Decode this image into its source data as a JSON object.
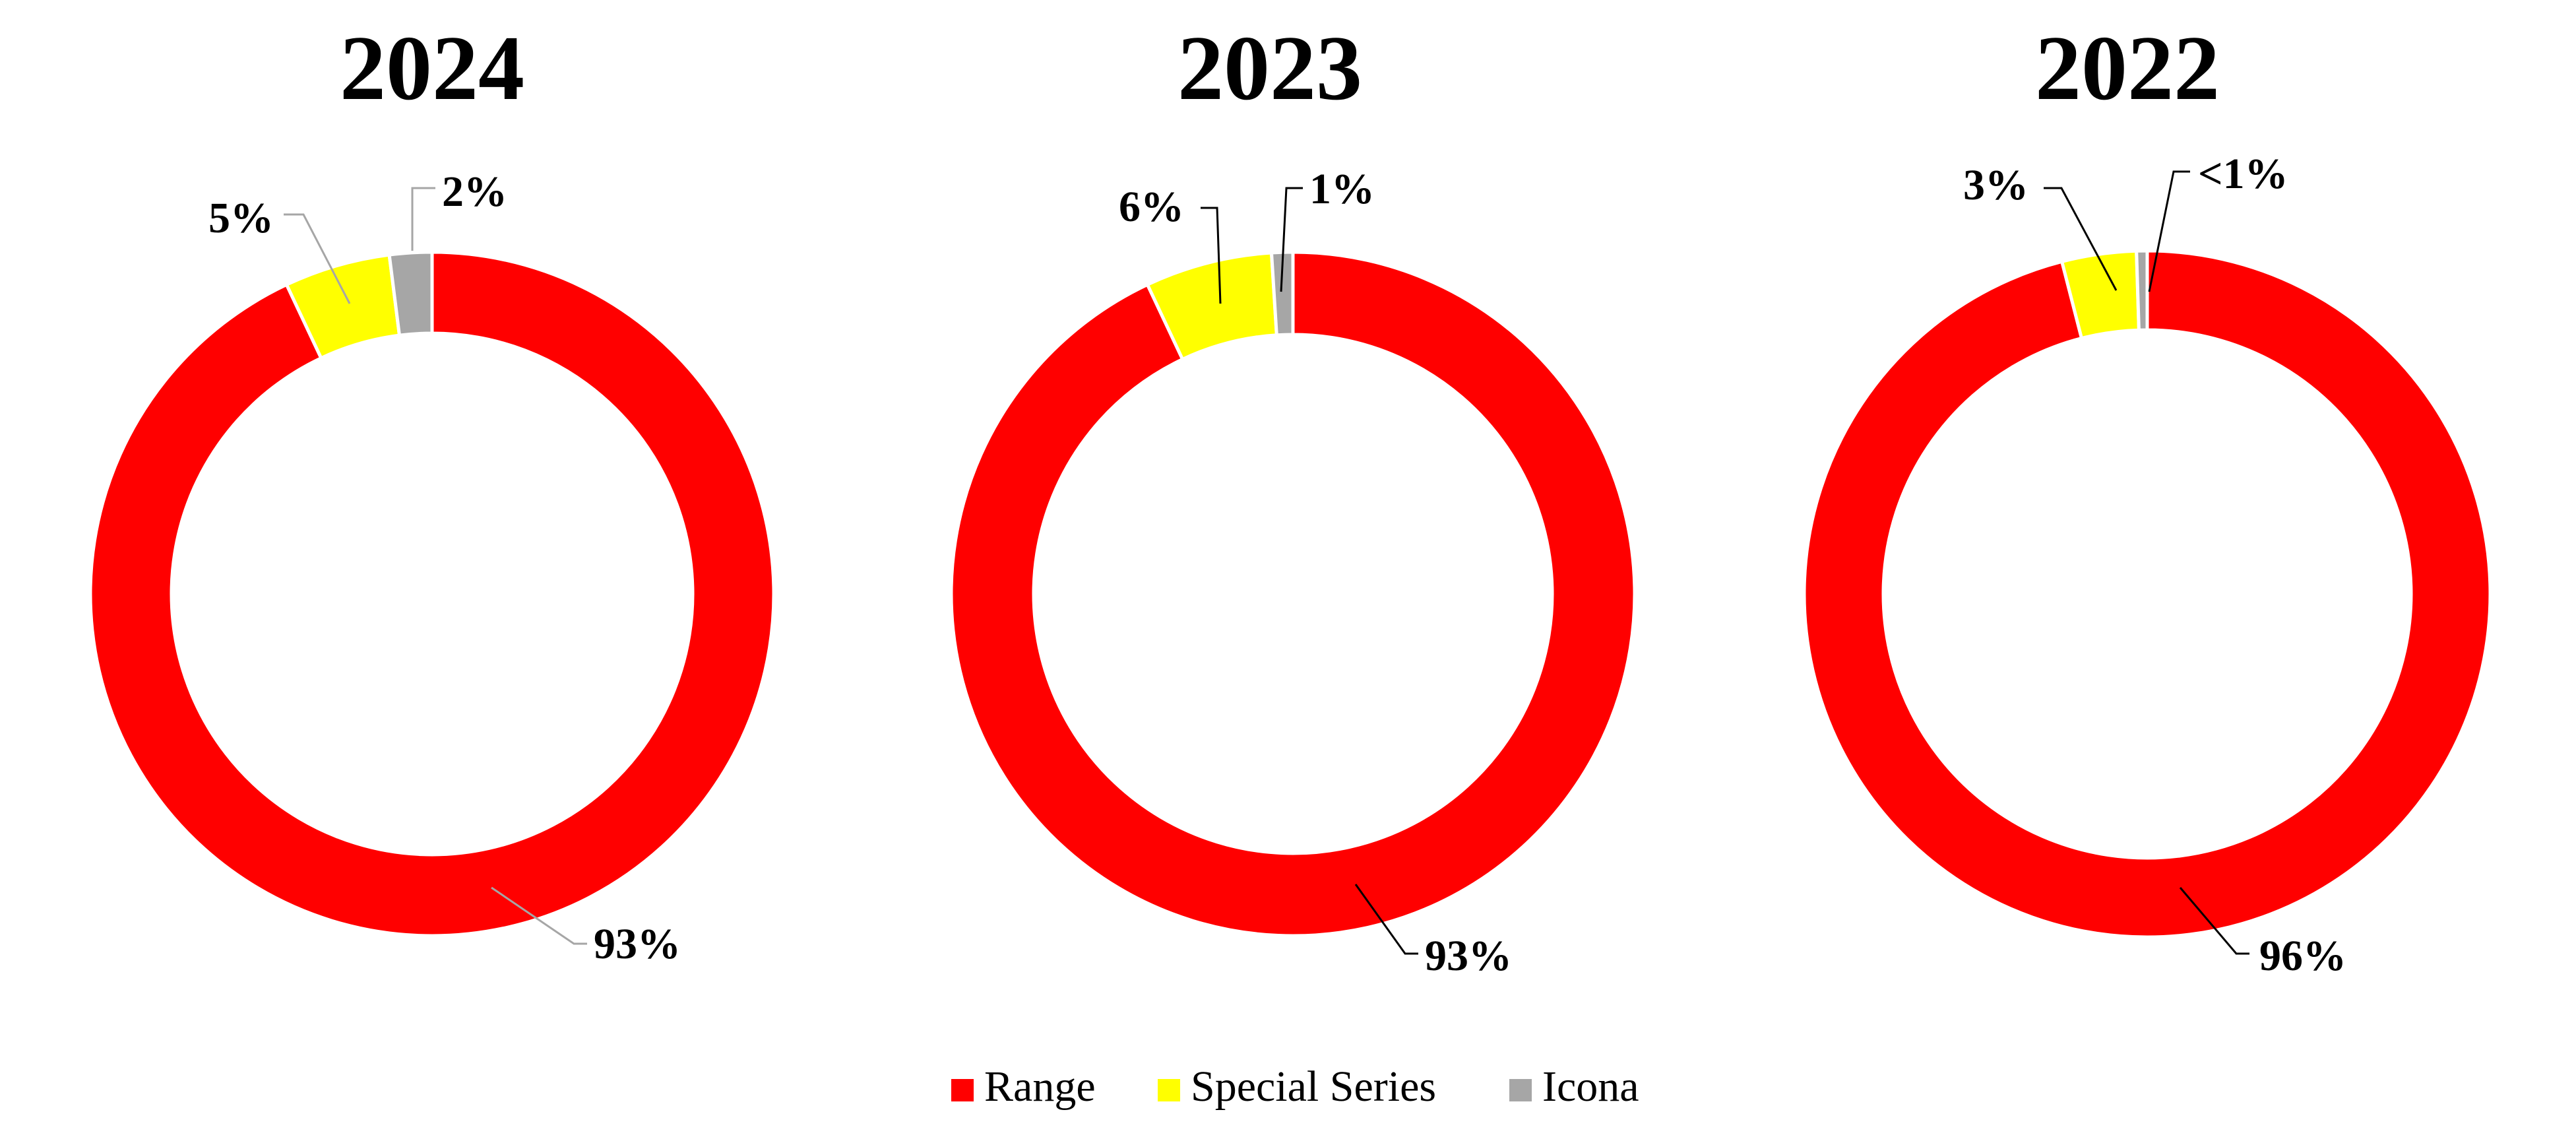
{
  "chart_data": {
    "type": "donut",
    "categories": [
      "Range",
      "Special Series",
      "Icona"
    ],
    "colors": {
      "Range": "#ff0000",
      "Special Series": "#ffff00",
      "Icona": "#a6a6a6"
    },
    "legend": {
      "position": "bottom-center",
      "items": [
        {
          "label": "Range",
          "color": "#ff0000"
        },
        {
          "label": "Special Series",
          "color": "#ffff00"
        },
        {
          "label": "Icona",
          "color": "#a6a6a6"
        }
      ]
    },
    "charts": [
      {
        "title": "2024",
        "values": [
          93,
          5,
          2
        ],
        "labels": [
          "93%",
          "5%",
          "2%"
        ]
      },
      {
        "title": "2023",
        "values": [
          93,
          6,
          1
        ],
        "labels": [
          "93%",
          "6%",
          "1%"
        ]
      },
      {
        "title": "2022",
        "values": [
          96,
          3.5,
          0.5
        ],
        "labels": [
          "96%",
          "3%",
          "<1%"
        ]
      }
    ]
  }
}
